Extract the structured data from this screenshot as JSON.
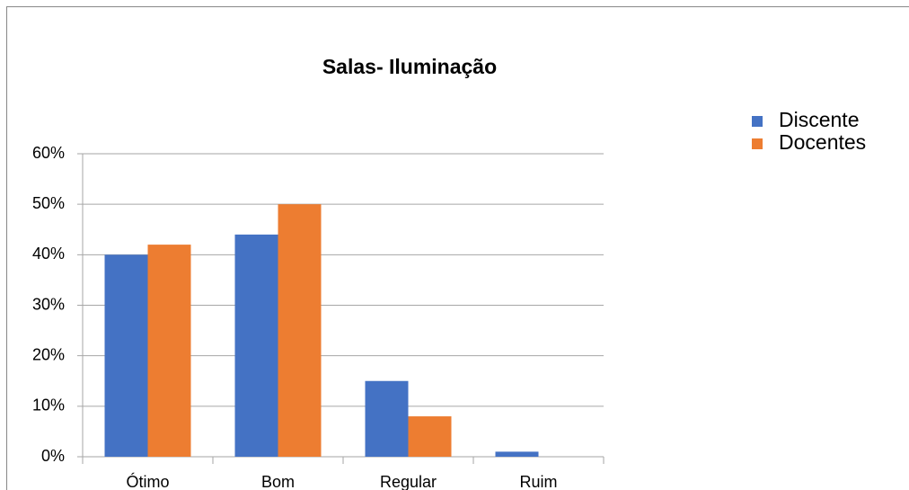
{
  "chart_data": {
    "type": "bar",
    "title": "Salas- Iluminação",
    "categories": [
      "Ótimo",
      "Bom",
      "Regular",
      "Ruim"
    ],
    "series": [
      {
        "name": "Discente",
        "color": "#4472c4",
        "values": [
          40,
          44,
          15,
          1
        ]
      },
      {
        "name": "Docentes",
        "color": "#ed7d31",
        "values": [
          42,
          50,
          8,
          0
        ]
      }
    ],
    "ylim": [
      0,
      60
    ],
    "yticks": [
      {
        "value": 0,
        "label": "0%"
      },
      {
        "value": 10,
        "label": "10%"
      },
      {
        "value": 20,
        "label": "20%"
      },
      {
        "value": 30,
        "label": "30%"
      },
      {
        "value": 40,
        "label": "40%"
      },
      {
        "value": 50,
        "label": "50%"
      },
      {
        "value": 60,
        "label": "60%"
      }
    ],
    "grid": true,
    "legend": "right"
  }
}
